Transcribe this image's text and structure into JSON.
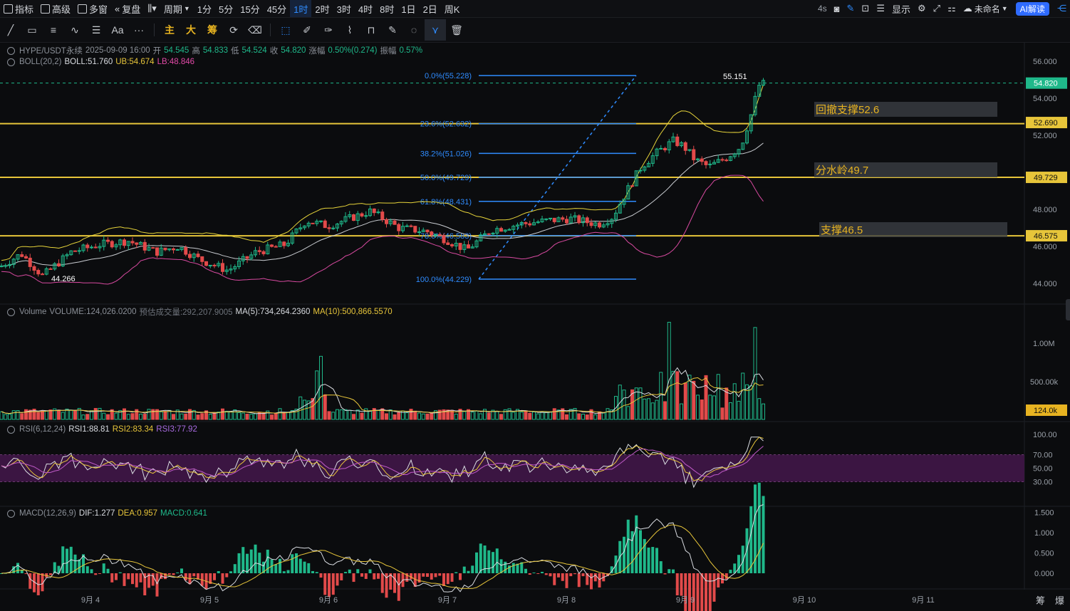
{
  "toolbar": {
    "left": [
      {
        "label": "指标",
        "icon": "indicator-icon"
      },
      {
        "label": "高级",
        "icon": "advanced-icon"
      },
      {
        "label": "多窗",
        "icon": "multi-window-icon"
      },
      {
        "label": "复盘",
        "icon": "replay-icon"
      },
      {
        "label": "",
        "icon": "candle-type-icon"
      },
      {
        "label": "周期",
        "icon": "chevron-down-icon"
      }
    ],
    "periods": [
      "1分",
      "5分",
      "15分",
      "45分",
      "1时",
      "2时",
      "3时",
      "4时",
      "8时",
      "1日",
      "2日",
      "周K"
    ],
    "active_period": "1时",
    "right": {
      "refresh": "4s",
      "display": "显示",
      "account": "未命名",
      "ai": "AI解读"
    }
  },
  "drawtools": {
    "text_tool": "Aa",
    "more": "···",
    "labels": [
      "主",
      "大",
      "筹"
    ]
  },
  "legend": {
    "symbol": "HYPE/USDT永续",
    "datetime": "2025-09-09 16:00",
    "open_label": "开",
    "open": "54.545",
    "high_label": "高",
    "high": "54.833",
    "low_label": "低",
    "low": "54.524",
    "close_label": "收",
    "close": "54.820",
    "change_label": "涨幅",
    "change": "0.50%(0.274)",
    "amp_label": "振幅",
    "amp": "0.57%",
    "boll_name": "BOLL(20,2)",
    "boll": "BOLL:51.760",
    "ub": "UB:54.674",
    "lb": "LB:48.846"
  },
  "volume_legend": {
    "name": "Volume",
    "volume": "VOLUME:124,026.0200",
    "est": "预估成交量:292,207.9005",
    "ma5": "MA(5):734,264.2360",
    "ma10": "MA(10):500,866.5570"
  },
  "rsi_legend": {
    "name": "RSI(6,12,24)",
    "rsi1": "RSI1:88.81",
    "rsi2": "RSI2:83.34",
    "rsi3": "RSI3:77.92"
  },
  "macd_legend": {
    "name": "MACD(12,26,9)",
    "dif": "DIF:1.277",
    "dea": "DEA:0.957",
    "macd": "MACD:0.641"
  },
  "price_axis": {
    "ticks": [
      "56.000",
      "54.000",
      "52.000",
      "48.000",
      "46.000",
      "44.000"
    ],
    "current": "54.820",
    "markers": [
      "52.690",
      "49.729",
      "46.575"
    ]
  },
  "volume_axis": {
    "ticks": [
      "1.00M",
      "500.00k"
    ],
    "current": "124.0k"
  },
  "rsi_axis": {
    "ticks": [
      "100.00",
      "70.00",
      "50.00",
      "30.00"
    ]
  },
  "macd_axis": {
    "ticks": [
      "1.500",
      "1.000",
      "0.500",
      "0.000"
    ]
  },
  "time_axis": [
    "9月 4",
    "9月 5",
    "9月 6",
    "9月 7",
    "9月 8",
    "9月 9",
    "9月 10",
    "9月 11"
  ],
  "fib": [
    {
      "label": "0.0%(55.228)"
    },
    {
      "label": "23.6%(52.632)"
    },
    {
      "label": "38.2%(51.026)"
    },
    {
      "label": "50.0%(49.729)"
    },
    {
      "label": "61.8%(48.431)"
    },
    {
      "label": "78.6%(46.583)"
    },
    {
      "label": "100.0%(44.229)"
    }
  ],
  "annotations": [
    {
      "text": "回撤支撑52.6"
    },
    {
      "text": "分水岭49.7"
    },
    {
      "text": "支撑46.5"
    }
  ],
  "price_marks": {
    "high": "55.151",
    "low": "44.266"
  },
  "bottom": [
    "筹",
    "爆"
  ],
  "colors": {
    "up": "#1fb88a",
    "down": "#e24a4a",
    "boll_mid": "#c9ccd1",
    "boll_up": "#e7d43a",
    "boll_low": "#d84aa0",
    "fib": "#2f8cff",
    "hline": "#e7c53a",
    "rsi_band": "#3b1542"
  }
}
